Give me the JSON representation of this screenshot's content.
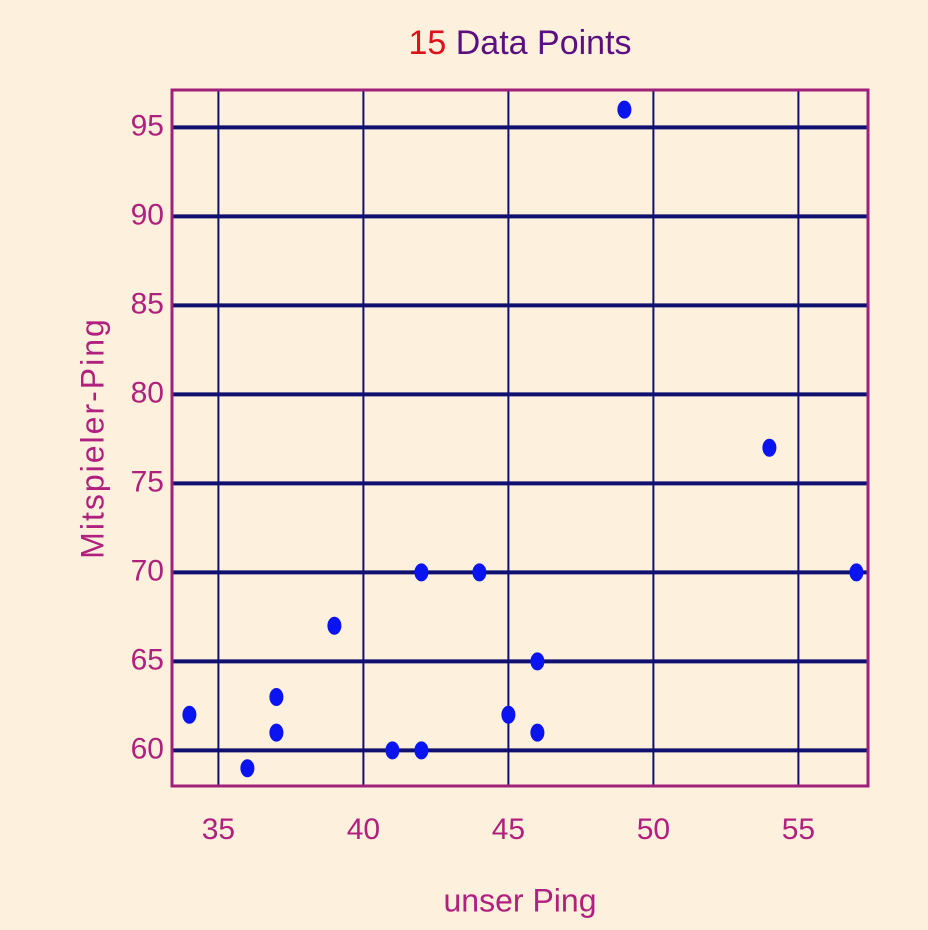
{
  "chart_data": {
    "type": "scatter",
    "title_count": "15",
    "title_text": "Data Points",
    "x_label": "unser Ping",
    "y_label": "Mitspieler-Ping",
    "x": [
      34,
      36,
      37,
      37,
      39,
      41,
      42,
      42,
      44,
      45,
      46,
      46,
      49,
      54,
      57
    ],
    "values": [
      62,
      59,
      63,
      61,
      67,
      60,
      60,
      70,
      70,
      62,
      65,
      61,
      96,
      77,
      70
    ],
    "color": "#0a14f0",
    "xlim": [
      33.4,
      57.4
    ],
    "xticks": [
      35,
      40,
      45,
      50,
      55
    ],
    "ylim": [
      58,
      97.1
    ],
    "yticks": [
      60,
      65,
      70,
      75,
      80,
      85,
      90,
      95
    ],
    "grid": true
  }
}
